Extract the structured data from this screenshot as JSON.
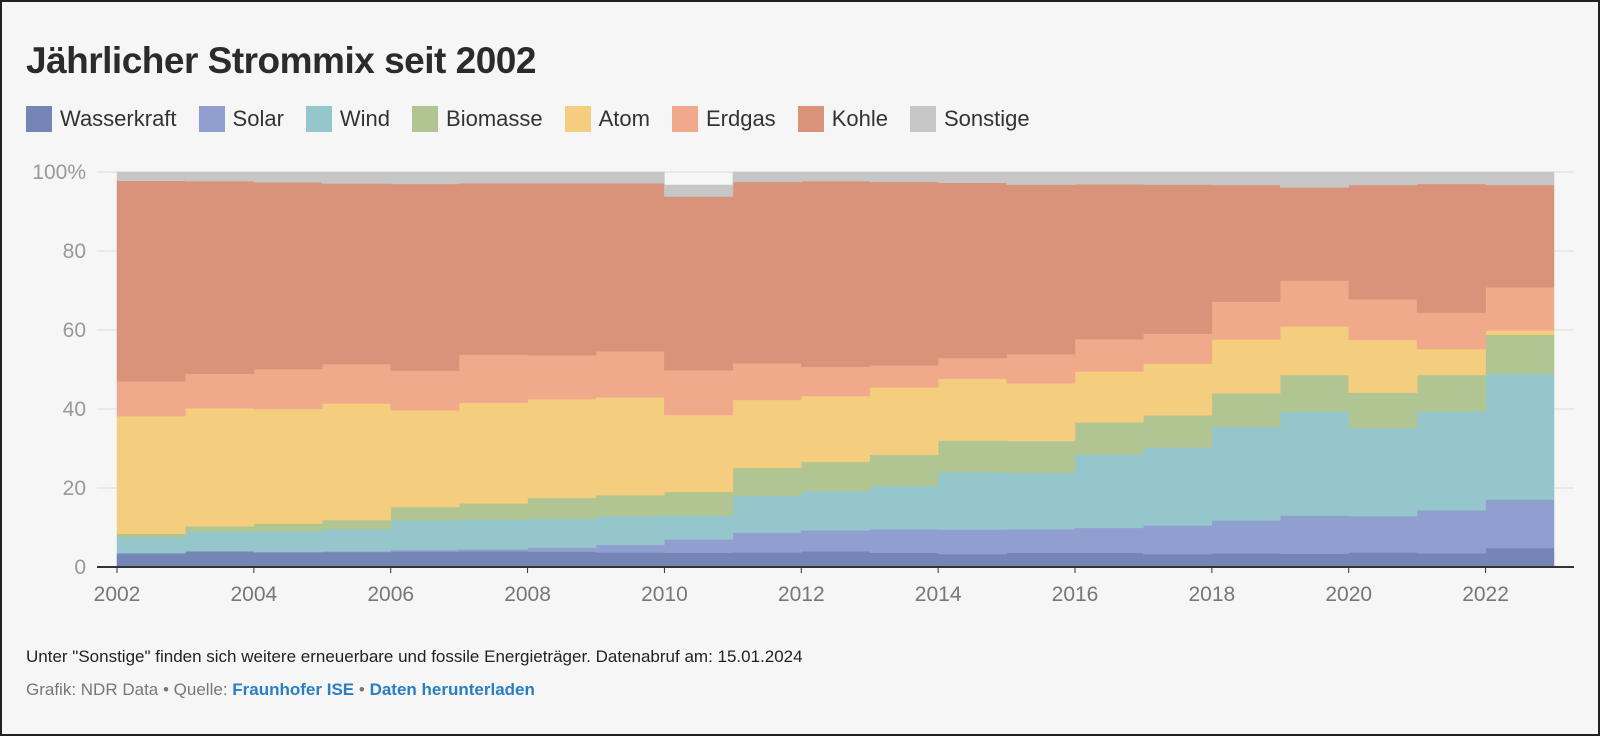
{
  "title": "Jährlicher Strommix seit 2002",
  "note": "Unter \"Sonstige\" finden sich weitere erneuerbare und fossile Energieträger. Datenabruf am: 15.01.2024",
  "credits": {
    "graphic": "Grafik: NDR Data",
    "separator": "•",
    "source_label": "Quelle:",
    "source_link": "Fraunhofer ISE",
    "download_link": "Daten herunterladen"
  },
  "chart_data": {
    "type": "area",
    "stacked": true,
    "step": true,
    "x": [
      2002,
      2003,
      2004,
      2005,
      2006,
      2007,
      2008,
      2009,
      2010,
      2011,
      2012,
      2013,
      2014,
      2015,
      2016,
      2017,
      2018,
      2019,
      2020,
      2021,
      2022
    ],
    "series": [
      {
        "name": "Wasserkraft",
        "color": "#7585b5",
        "values": [
          3.5,
          4.0,
          3.8,
          3.8,
          3.9,
          4.0,
          3.9,
          3.7,
          3.6,
          3.7,
          4.0,
          3.6,
          3.3,
          3.6,
          3.6,
          3.3,
          3.5,
          3.4,
          3.7,
          3.5,
          4.8
        ]
      },
      {
        "name": "Solar",
        "color": "#919fd0",
        "values": [
          0.0,
          0.0,
          0.0,
          0.2,
          0.4,
          0.5,
          1.0,
          1.9,
          3.4,
          5.0,
          5.3,
          6.0,
          6.2,
          6.0,
          6.3,
          7.2,
          8.3,
          9.6,
          9.2,
          10.9,
          12.3
        ]
      },
      {
        "name": "Wind",
        "color": "#94c6cb",
        "values": [
          4.0,
          4.9,
          5.3,
          5.6,
          7.5,
          7.5,
          7.3,
          7.3,
          6.0,
          9.3,
          9.9,
          10.9,
          14.5,
          14.3,
          18.6,
          19.8,
          23.7,
          26.3,
          22.3,
          25.0,
          31.8
        ]
      },
      {
        "name": "Biomasse",
        "color": "#b1c592",
        "values": [
          0.9,
          1.4,
          1.9,
          2.3,
          3.4,
          4.1,
          5.3,
          5.3,
          6.0,
          7.1,
          7.4,
          7.9,
          8.0,
          8.0,
          8.1,
          8.1,
          8.5,
          9.3,
          8.9,
          9.2,
          9.9
        ]
      },
      {
        "name": "Atom",
        "color": "#f4cd7f",
        "values": [
          29.8,
          29.9,
          29.0,
          29.5,
          24.5,
          25.5,
          25.0,
          24.8,
          19.5,
          17.2,
          16.7,
          17.1,
          15.7,
          14.6,
          12.9,
          13.1,
          13.6,
          12.3,
          13.4,
          6.6,
          1.1
        ]
      },
      {
        "name": "Erdgas",
        "color": "#f1a98b",
        "values": [
          8.8,
          8.7,
          10.1,
          10.0,
          10.0,
          12.2,
          11.1,
          11.6,
          11.3,
          9.3,
          7.4,
          5.6,
          5.2,
          7.4,
          8.2,
          7.6,
          9.6,
          11.6,
          10.3,
          9.2,
          10.9
        ]
      },
      {
        "name": "Kohle",
        "color": "#d9937a",
        "values": [
          50.8,
          48.8,
          47.3,
          45.7,
          47.3,
          43.4,
          43.6,
          42.6,
          44.0,
          45.9,
          47.0,
          46.4,
          44.4,
          42.9,
          39.2,
          37.7,
          29.5,
          23.6,
          28.9,
          32.6,
          25.9
        ]
      },
      {
        "name": "Sonstige",
        "color": "#c6c6c6",
        "values": [
          2.2,
          2.3,
          2.6,
          2.9,
          3.0,
          2.8,
          2.8,
          2.8,
          2.9,
          2.5,
          2.3,
          2.5,
          2.7,
          3.2,
          3.1,
          3.2,
          3.3,
          3.9,
          3.3,
          3.0,
          3.3
        ]
      }
    ],
    "xticks": [
      2002,
      2004,
      2006,
      2008,
      2010,
      2012,
      2014,
      2016,
      2018,
      2020,
      2022
    ],
    "yticks": [
      0,
      20,
      40,
      60,
      80,
      100
    ],
    "ytick_labels": [
      "0",
      "20",
      "40",
      "60",
      "80",
      "100%"
    ],
    "xlim": [
      2002,
      2023
    ],
    "ylim": [
      0,
      100
    ],
    "grid": "horizontal",
    "legend_position": "top-left"
  }
}
